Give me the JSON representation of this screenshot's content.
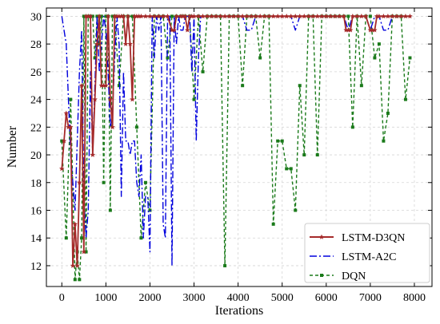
{
  "chart_data": {
    "type": "line",
    "title": "",
    "xlabel": "Iterations",
    "ylabel": "Number",
    "xlim": [
      -350,
      8400
    ],
    "ylim": [
      10.5,
      30.6
    ],
    "xticks": [
      0,
      1000,
      2000,
      3000,
      4000,
      5000,
      6000,
      7000,
      8000
    ],
    "xtick_labels": [
      "0",
      "1000",
      "2000",
      "3000",
      "4000",
      "5000",
      "6000",
      "7000",
      "8000"
    ],
    "yticks": [
      12,
      14,
      16,
      18,
      20,
      22,
      24,
      26,
      28,
      30
    ],
    "ytick_labels": [
      "12",
      "14",
      "16",
      "18",
      "20",
      "22",
      "24",
      "26",
      "28",
      "30"
    ],
    "grid": true,
    "legend_position": "bottom-right",
    "series": [
      {
        "name": "LSTM-D3QN",
        "color": "#a52a2a",
        "dash": "solid",
        "marker": "star",
        "x": [
          0,
          50,
          100,
          150,
          200,
          250,
          300,
          350,
          400,
          450,
          500,
          550,
          600,
          650,
          700,
          750,
          800,
          850,
          900,
          950,
          1000,
          1050,
          1100,
          1150,
          1200,
          1250,
          1300,
          1350,
          1400,
          1450,
          1500,
          1550,
          1600,
          1650,
          1700,
          1750,
          1800,
          1900,
          2000,
          2100,
          2200,
          2300,
          2400,
          2500,
          2550,
          2600,
          2700,
          2750,
          2800,
          2850,
          2900,
          2950,
          3000,
          3100,
          3200,
          3300,
          3400,
          3500,
          3600,
          3700,
          3800,
          3900,
          4000,
          4100,
          4200,
          4300,
          4400,
          4500,
          4600,
          4700,
          4800,
          4900,
          5000,
          5100,
          5200,
          5300,
          5400,
          5500,
          5600,
          5700,
          5800,
          5900,
          6000,
          6100,
          6200,
          6300,
          6400,
          6450,
          6500,
          6550,
          6600,
          6700,
          6800,
          6900,
          7000,
          7050,
          7100,
          7150,
          7200,
          7300,
          7400,
          7500,
          7600,
          7700,
          7800,
          7900
        ],
        "y": [
          19,
          21,
          23,
          22,
          22,
          12,
          15,
          12,
          18,
          25,
          13,
          30,
          30,
          30,
          20,
          24,
          28,
          30,
          25,
          25,
          25,
          30,
          24,
          22,
          30,
          30,
          30,
          30,
          30,
          28,
          30,
          28,
          24,
          30,
          30,
          30,
          30,
          30,
          30,
          30,
          30,
          30,
          30,
          29,
          29,
          30,
          30,
          30,
          30,
          29,
          30,
          30,
          30,
          30,
          30,
          30,
          30,
          30,
          30,
          30,
          30,
          30,
          30,
          30,
          30,
          30,
          30,
          30,
          30,
          30,
          30,
          30,
          30,
          30,
          30,
          30,
          30,
          30,
          30,
          30,
          30,
          30,
          30,
          30,
          30,
          30,
          30,
          29,
          29,
          29,
          30,
          30,
          30,
          30,
          29,
          29,
          29,
          30,
          30,
          30,
          30,
          30,
          30,
          30,
          30,
          30
        ]
      },
      {
        "name": "LSTM-A2C",
        "color": "#0000dd",
        "dash": "dashdot",
        "marker": "none",
        "x": [
          0,
          100,
          200,
          300,
          400,
          450,
          500,
          550,
          600,
          650,
          700,
          750,
          800,
          850,
          900,
          950,
          1000,
          1050,
          1100,
          1150,
          1200,
          1250,
          1300,
          1350,
          1400,
          1450,
          1500,
          1550,
          1600,
          1650,
          1700,
          1750,
          1800,
          1850,
          1900,
          1950,
          2000,
          2050,
          2100,
          2150,
          2200,
          2250,
          2300,
          2350,
          2400,
          2450,
          2500,
          2550,
          2600,
          2650,
          2700,
          2750,
          2800,
          2850,
          2900,
          2950,
          3000,
          3050,
          3100,
          3150,
          3200,
          3250,
          3300,
          3400,
          3500,
          3600,
          3700,
          3800,
          3900,
          4000,
          4100,
          4200,
          4300,
          4400,
          4500,
          4600,
          4700,
          4800,
          4900,
          5000,
          5100,
          5200,
          5300,
          5400,
          5500,
          5600,
          5700,
          5800,
          5900,
          6000,
          6100,
          6200,
          6300,
          6400,
          6500,
          6600,
          6700,
          6800,
          6900,
          7000,
          7100,
          7200,
          7300,
          7400,
          7500,
          7600,
          7700,
          7800,
          7900
        ],
        "y": [
          30,
          28,
          20,
          16,
          26,
          29,
          17,
          14,
          16,
          26,
          20,
          25,
          30,
          26,
          28,
          30,
          29,
          26,
          22,
          23,
          27,
          30,
          28,
          17,
          26,
          21,
          21,
          20,
          21,
          21,
          18,
          17,
          20,
          14,
          17,
          17,
          13,
          30,
          27,
          30,
          29,
          30,
          15,
          14,
          30,
          30,
          12,
          30,
          28,
          30,
          29,
          29,
          30,
          30,
          30,
          26,
          30,
          21,
          27,
          30,
          30,
          30,
          30,
          30,
          30,
          30,
          30,
          30,
          30,
          30,
          30,
          29,
          29,
          30,
          30,
          30,
          30,
          30,
          30,
          30,
          30,
          30,
          29,
          30,
          30,
          30,
          30,
          30,
          30,
          30,
          30,
          30,
          30,
          30,
          29,
          30,
          30,
          30,
          30,
          29,
          30,
          30,
          29,
          29,
          30,
          30,
          30,
          30,
          30
        ]
      },
      {
        "name": "DQN",
        "color": "#1a7a1a",
        "dash": "dashed",
        "marker": "square",
        "x": [
          0,
          100,
          200,
          300,
          350,
          400,
          450,
          500,
          550,
          600,
          650,
          700,
          750,
          800,
          850,
          900,
          950,
          1000,
          1050,
          1100,
          1150,
          1200,
          1300,
          1400,
          1500,
          1600,
          1700,
          1800,
          1900,
          2000,
          2100,
          2200,
          2300,
          2400,
          2500,
          2600,
          2700,
          2800,
          2900,
          3000,
          3100,
          3200,
          3300,
          3400,
          3500,
          3600,
          3700,
          3800,
          3900,
          4000,
          4100,
          4200,
          4300,
          4400,
          4500,
          4600,
          4700,
          4800,
          4900,
          5000,
          5100,
          5200,
          5300,
          5400,
          5500,
          5600,
          5700,
          5800,
          5900,
          6000,
          6100,
          6200,
          6300,
          6400,
          6500,
          6600,
          6700,
          6800,
          6900,
          7000,
          7100,
          7200,
          7300,
          7400,
          7500,
          7600,
          7700,
          7800,
          7900
        ],
        "y": [
          21,
          14,
          24,
          11,
          13,
          11,
          14,
          30,
          13,
          30,
          30,
          30,
          27,
          30,
          28,
          30,
          18,
          30,
          30,
          16,
          30,
          30,
          25,
          30,
          30,
          30,
          22,
          14,
          18,
          16,
          30,
          30,
          30,
          27,
          30,
          30,
          30,
          30,
          30,
          24,
          30,
          26,
          30,
          30,
          30,
          30,
          12,
          30,
          30,
          30,
          25,
          30,
          30,
          30,
          27,
          30,
          30,
          15,
          21,
          21,
          19,
          19,
          16,
          25,
          20,
          30,
          30,
          20,
          30,
          30,
          30,
          30,
          30,
          30,
          30,
          22,
          30,
          25,
          30,
          30,
          27,
          28,
          21,
          23,
          30,
          30,
          30,
          24,
          27
        ]
      }
    ]
  }
}
